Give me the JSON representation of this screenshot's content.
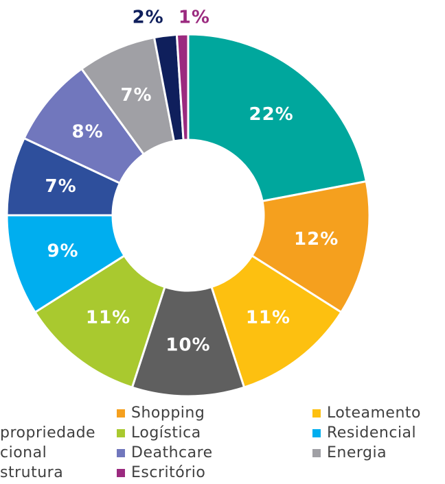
{
  "chart_data": {
    "type": "donut",
    "categories": [
      null,
      "Shopping",
      "Loteamento",
      "propriedade",
      "Logística",
      "Residencial",
      "cional",
      "Deathcare",
      "Energia",
      "strutura",
      "Escritório"
    ],
    "values": [
      22,
      12,
      11,
      10,
      11,
      9,
      7,
      8,
      7,
      2,
      1
    ],
    "value_labels": [
      "22%",
      "12%",
      "11%",
      "10%",
      "11%",
      "9%",
      "7%",
      "8%",
      "7%",
      "2%",
      "1%"
    ],
    "colors": [
      "#00a79d",
      "#f5a01e",
      "#fdc010",
      "#5f5f5f",
      "#a9c92f",
      "#00aeef",
      "#2e4f9c",
      "#7177bd",
      "#a0a0a5",
      "#0f1f5c",
      "#9b2a7f"
    ],
    "legend": true
  }
}
